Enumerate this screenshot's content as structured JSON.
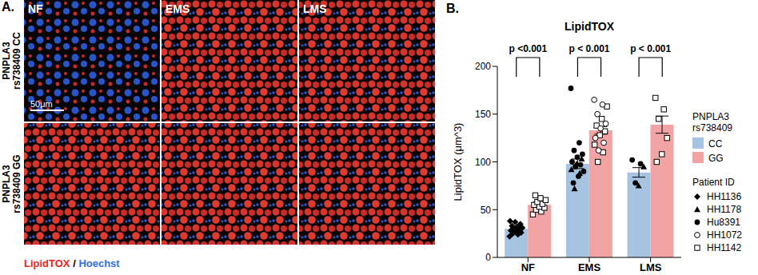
{
  "panel_a": {
    "panel_label": "A.",
    "columns": [
      "NF",
      "EMS",
      "LMS"
    ],
    "rows": [
      "PNPLA3 rs738409 CC",
      "PNPLA3 rs738409 GG"
    ],
    "scale_bar": "50μm",
    "stain_legend": [
      {
        "text": "LipidTOX",
        "color": "#e0281f"
      },
      {
        "text": " / ",
        "color": "#000000"
      },
      {
        "text": "Hoechst",
        "color": "#2f6fe0"
      }
    ]
  },
  "chart_data": {
    "type": "bar",
    "panel_label": "B.",
    "title": "LipidTOX",
    "y_label": "LipidTOX (μm^3)",
    "categories": [
      "NF",
      "EMS",
      "LMS"
    ],
    "ylim": [
      0,
      200
    ],
    "yticks": [
      0,
      50,
      100,
      150,
      200
    ],
    "legend_title": "PNPLA3 rs738409",
    "annotations": [
      {
        "text": "p <0.001",
        "category": "NF"
      },
      {
        "text": "p < 0.001",
        "category": "EMS"
      },
      {
        "text": "p < 0.001",
        "category": "LMS"
      }
    ],
    "patient_legend": {
      "title": "Patient ID",
      "patients": [
        {
          "id": "HH1136",
          "marker": "diamond"
        },
        {
          "id": "HH1178",
          "marker": "triangle"
        },
        {
          "id": "Hu8391",
          "marker": "circle"
        },
        {
          "id": "HH1072",
          "marker": "open_circle"
        },
        {
          "id": "HH1142",
          "marker": "open_square"
        }
      ]
    },
    "series": [
      {
        "name": "CC",
        "color": "#a7c3e2",
        "values": [
          30,
          98,
          89
        ],
        "errors": [
          2,
          5,
          5
        ],
        "points": [
          [
            {
              "id": "HH1136",
              "y": 22
            },
            {
              "id": "HH1136",
              "y": 24
            },
            {
              "id": "HH1136",
              "y": 25
            },
            {
              "id": "HH1136",
              "y": 26
            },
            {
              "id": "HH1136",
              "y": 27
            },
            {
              "id": "HH1136",
              "y": 28
            },
            {
              "id": "HH1136",
              "y": 29
            },
            {
              "id": "HH1136",
              "y": 30
            },
            {
              "id": "HH1136",
              "y": 31
            },
            {
              "id": "HH1136",
              "y": 32
            },
            {
              "id": "HH1136",
              "y": 33
            },
            {
              "id": "HH1136",
              "y": 35
            },
            {
              "id": "HH1136",
              "y": 37
            },
            {
              "id": "HH1136",
              "y": 38
            }
          ],
          [
            {
              "id": "Hu8391",
              "y": 177
            },
            {
              "id": "Hu8391",
              "y": 120
            },
            {
              "id": "Hu8391",
              "y": 112
            },
            {
              "id": "Hu8391",
              "y": 108
            },
            {
              "id": "Hu8391",
              "y": 105
            },
            {
              "id": "Hu8391",
              "y": 100
            },
            {
              "id": "Hu8391",
              "y": 97
            },
            {
              "id": "Hu8391",
              "y": 95
            },
            {
              "id": "Hu8391",
              "y": 90
            },
            {
              "id": "Hu8391",
              "y": 85
            },
            {
              "id": "Hu8391",
              "y": 78
            },
            {
              "id": "HH1178",
              "y": 103
            },
            {
              "id": "HH1178",
              "y": 98
            },
            {
              "id": "HH1178",
              "y": 92
            },
            {
              "id": "HH1178",
              "y": 88
            },
            {
              "id": "HH1178",
              "y": 72
            }
          ],
          [
            {
              "id": "Hu8391",
              "y": 102
            },
            {
              "id": "Hu8391",
              "y": 98
            },
            {
              "id": "Hu8391",
              "y": 78
            },
            {
              "id": "HH1178",
              "y": 95
            },
            {
              "id": "HH1178",
              "y": 75
            }
          ]
        ]
      },
      {
        "name": "GG",
        "color": "#f2a3a3",
        "values": [
          55,
          133,
          139
        ],
        "errors": [
          3,
          4,
          9
        ],
        "points": [
          [
            {
              "id": "HH1142",
              "y": 45
            },
            {
              "id": "HH1142",
              "y": 48
            },
            {
              "id": "HH1142",
              "y": 50
            },
            {
              "id": "HH1142",
              "y": 52
            },
            {
              "id": "HH1142",
              "y": 53
            },
            {
              "id": "HH1142",
              "y": 55
            },
            {
              "id": "HH1142",
              "y": 56
            },
            {
              "id": "HH1142",
              "y": 58
            },
            {
              "id": "HH1142",
              "y": 60
            },
            {
              "id": "HH1142",
              "y": 62
            },
            {
              "id": "HH1142",
              "y": 65
            }
          ],
          [
            {
              "id": "HH1072",
              "y": 165
            },
            {
              "id": "HH1072",
              "y": 160
            },
            {
              "id": "HH1072",
              "y": 150
            },
            {
              "id": "HH1072",
              "y": 140
            },
            {
              "id": "HH1072",
              "y": 135
            },
            {
              "id": "HH1072",
              "y": 125
            },
            {
              "id": "HH1072",
              "y": 120
            },
            {
              "id": "HH1072",
              "y": 112
            },
            {
              "id": "HH1142",
              "y": 158
            },
            {
              "id": "HH1142",
              "y": 145
            },
            {
              "id": "HH1142",
              "y": 138
            },
            {
              "id": "HH1142",
              "y": 132
            },
            {
              "id": "HH1142",
              "y": 128
            },
            {
              "id": "HH1142",
              "y": 118
            },
            {
              "id": "HH1142",
              "y": 110
            },
            {
              "id": "HH1142",
              "y": 100
            }
          ],
          [
            {
              "id": "HH1142",
              "y": 167
            },
            {
              "id": "HH1142",
              "y": 155
            },
            {
              "id": "HH1142",
              "y": 145
            },
            {
              "id": "HH1142",
              "y": 125
            },
            {
              "id": "HH1142",
              "y": 108
            },
            {
              "id": "HH1142",
              "y": 100
            }
          ]
        ]
      }
    ]
  }
}
